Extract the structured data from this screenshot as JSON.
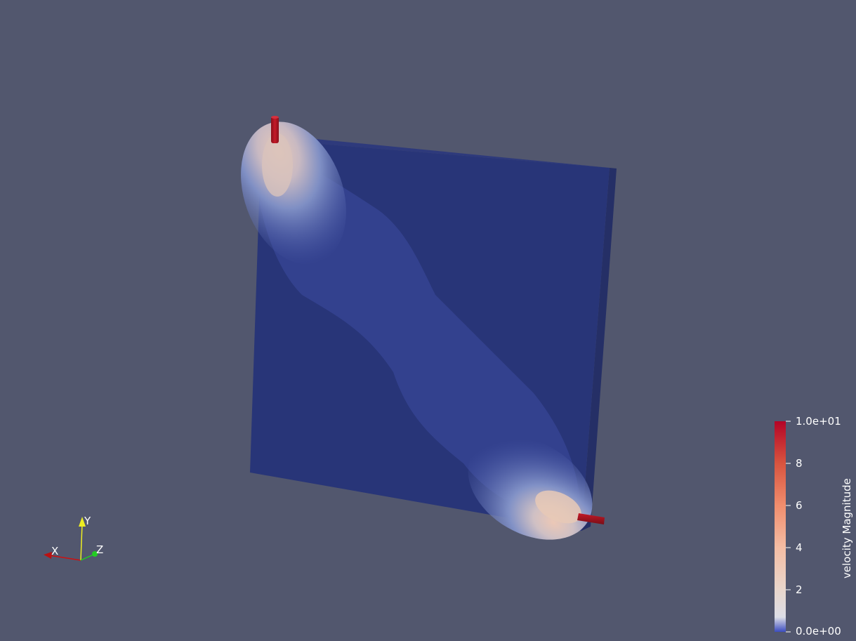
{
  "render_view": {
    "background_color": "#52576e",
    "object": "cavity-with-inlet-outlet",
    "colormap": "Cool to Warm"
  },
  "scalar_bar": {
    "title": "velocity Magnitude",
    "labels": [
      "1.0e+01",
      "8",
      "6",
      "4",
      "2",
      "0.0e+00"
    ],
    "max_color": "#b40426",
    "mid_color": "#dddddd",
    "min_color": "#3b4cc0"
  },
  "orientation_axes": {
    "x_label": "X",
    "y_label": "Y",
    "z_label": "Z",
    "x_color": "#cc1111",
    "y_color": "#eeee22",
    "z_color": "#22cc22"
  }
}
